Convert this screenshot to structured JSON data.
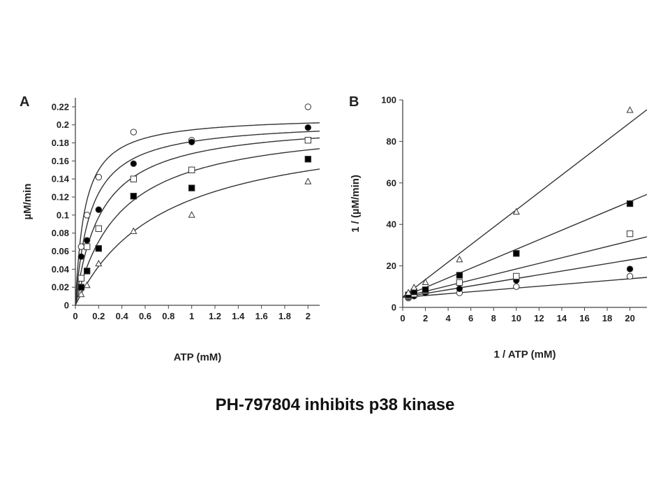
{
  "caption": "PH-797804 inhibits p38 kinase",
  "chart_data": [
    {
      "id": "A",
      "panel_label": "A",
      "type": "scatter",
      "xlabel": "ATP (mM)",
      "ylabel": "µM/min",
      "xlim": [
        0,
        2.1
      ],
      "ylim": [
        0,
        0.23
      ],
      "xticks": [
        0,
        0.2,
        0.4,
        0.6,
        0.8,
        1,
        1.2,
        1.4,
        1.6,
        1.8,
        2
      ],
      "xtick_labels": [
        "0",
        "0.2",
        "0.4",
        "0.6",
        "0.8",
        "1",
        "1.2",
        "1.4",
        "1.6",
        "1.8",
        "2"
      ],
      "yticks": [
        0,
        0.02,
        0.04,
        0.06,
        0.08,
        0.1,
        0.12,
        0.14,
        0.16,
        0.18,
        0.2,
        0.22
      ],
      "ytick_labels": [
        "0",
        "0.02",
        "0.04",
        "0.06",
        "0.08",
        "0.1",
        "0.12",
        "0.14",
        "0.16",
        "0.18",
        "0.2",
        "0.22"
      ],
      "series": [
        {
          "marker": "circle-open",
          "x": [
            0.05,
            0.1,
            0.2,
            0.5,
            1,
            2
          ],
          "y": [
            0.065,
            0.1,
            0.142,
            0.192,
            0.183,
            0.22
          ],
          "fit": {
            "vmax": 0.21,
            "km": 0.08
          }
        },
        {
          "marker": "circle-filled",
          "x": [
            0.05,
            0.1,
            0.2,
            0.5,
            1,
            2
          ],
          "y": [
            0.054,
            0.072,
            0.106,
            0.157,
            0.181,
            0.197
          ],
          "fit": {
            "vmax": 0.205,
            "km": 0.13
          }
        },
        {
          "marker": "square-open",
          "x": [
            0.05,
            0.1,
            0.2,
            0.5,
            1,
            2
          ],
          "y": [
            0.03,
            0.065,
            0.085,
            0.14,
            0.15,
            0.183
          ],
          "fit": {
            "vmax": 0.205,
            "km": 0.22
          }
        },
        {
          "marker": "square-filled",
          "x": [
            0.05,
            0.1,
            0.2,
            0.5,
            1,
            2
          ],
          "y": [
            0.02,
            0.038,
            0.063,
            0.121,
            0.13,
            0.162
          ],
          "fit": {
            "vmax": 0.205,
            "km": 0.38
          }
        },
        {
          "marker": "triangle-open",
          "x": [
            0.05,
            0.1,
            0.2,
            0.5,
            1,
            2
          ],
          "y": [
            0.012,
            0.022,
            0.046,
            0.082,
            0.1,
            0.137
          ],
          "fit": {
            "vmax": 0.205,
            "km": 0.75
          }
        }
      ]
    },
    {
      "id": "B",
      "panel_label": "B",
      "type": "scatter",
      "xlabel": "1 / ATP (mM)",
      "ylabel": "1 / (µM/min)",
      "xlim": [
        0,
        21.5
      ],
      "ylim": [
        0,
        100
      ],
      "xticks": [
        0,
        2,
        4,
        6,
        8,
        10,
        12,
        14,
        16,
        18,
        20
      ],
      "xtick_labels": [
        "0",
        "2",
        "4",
        "6",
        "8",
        "10",
        "12",
        "14",
        "16",
        "18",
        "20"
      ],
      "yticks": [
        0,
        20,
        40,
        60,
        80,
        100
      ],
      "ytick_labels": [
        "0",
        "20",
        "40",
        "60",
        "80",
        "100"
      ],
      "series": [
        {
          "marker": "circle-open",
          "x": [
            0.5,
            1,
            2,
            5,
            10,
            20
          ],
          "y": [
            4.5,
            5.5,
            7,
            7,
            10,
            15
          ],
          "fit": {
            "slope": 0.45,
            "intercept": 4.8
          }
        },
        {
          "marker": "circle-filled",
          "x": [
            0.5,
            1,
            2,
            5,
            10,
            20
          ],
          "y": [
            5,
            5.5,
            7,
            9,
            13,
            18.5
          ],
          "fit": {
            "slope": 0.9,
            "intercept": 4.9
          }
        },
        {
          "marker": "square-open",
          "x": [
            0.5,
            1,
            2,
            5,
            10,
            20
          ],
          "y": [
            5.5,
            6.5,
            8,
            12,
            15,
            35.5
          ],
          "fit": {
            "slope": 1.35,
            "intercept": 5
          }
        },
        {
          "marker": "square-filled",
          "x": [
            0.5,
            1,
            2,
            5,
            10,
            20
          ],
          "y": [
            6,
            7.5,
            8.5,
            15.5,
            26,
            50
          ],
          "fit": {
            "slope": 2.3,
            "intercept": 5
          }
        },
        {
          "marker": "triangle-open",
          "x": [
            0.5,
            1,
            2,
            5,
            10,
            20
          ],
          "y": [
            7,
            9.5,
            12,
            23,
            46,
            95
          ],
          "fit": {
            "slope": 4.2,
            "intercept": 5
          }
        }
      ]
    }
  ]
}
